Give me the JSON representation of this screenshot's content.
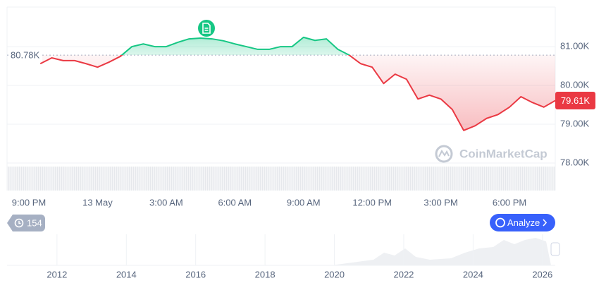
{
  "chart_data": {
    "type": "line",
    "categories": [
      "9:00 PM",
      null,
      null,
      null,
      null,
      null,
      "13 May",
      null,
      null,
      null,
      null,
      null,
      "3:00 AM",
      null,
      null,
      null,
      null,
      null,
      "6:00 AM",
      null,
      null,
      null,
      null,
      null,
      "9:00 AM",
      null,
      null,
      null,
      null,
      null,
      "12:00 PM",
      null,
      null,
      null,
      null,
      null,
      "3:00 PM",
      null,
      null,
      null,
      null,
      null,
      "6:00 PM",
      null,
      null,
      null,
      null
    ],
    "values": [
      null,
      80560,
      80710,
      80640,
      80640,
      80560,
      80470,
      80600,
      80750,
      81000,
      81070,
      81000,
      81000,
      81110,
      81200,
      81220,
      81200,
      81150,
      81070,
      81000,
      80930,
      80930,
      81000,
      81000,
      81240,
      81160,
      81200,
      80930,
      80780,
      80560,
      80470,
      80050,
      80290,
      80160,
      79650,
      79750,
      79650,
      79380,
      78840,
      78960,
      79150,
      79250,
      79440,
      79710,
      79560,
      79440,
      79610
    ],
    "colors": {
      "above": "#16c784",
      "below": "#ea3943"
    },
    "baseline": {
      "value": 80780,
      "label": "80.78K"
    },
    "last_price": {
      "value": 79610,
      "label": "79.61K"
    },
    "ylim": [
      77290,
      82020
    ],
    "yticks": [
      {
        "value": 78000,
        "label": "78.00K"
      },
      {
        "value": 79000,
        "label": "79.00K"
      },
      {
        "value": 80000,
        "label": "80.00K"
      },
      {
        "value": 81000,
        "label": "81.00K"
      }
    ],
    "grid": true,
    "watermark": "CoinMarketCap"
  },
  "controls": {
    "history": "154",
    "analyze": "Analyze"
  },
  "navigator": {
    "xlim": [
      2010.56,
      2026.37
    ],
    "xticks": [
      2012,
      2014,
      2016,
      2018,
      2020,
      2022,
      2024,
      2026
    ]
  }
}
